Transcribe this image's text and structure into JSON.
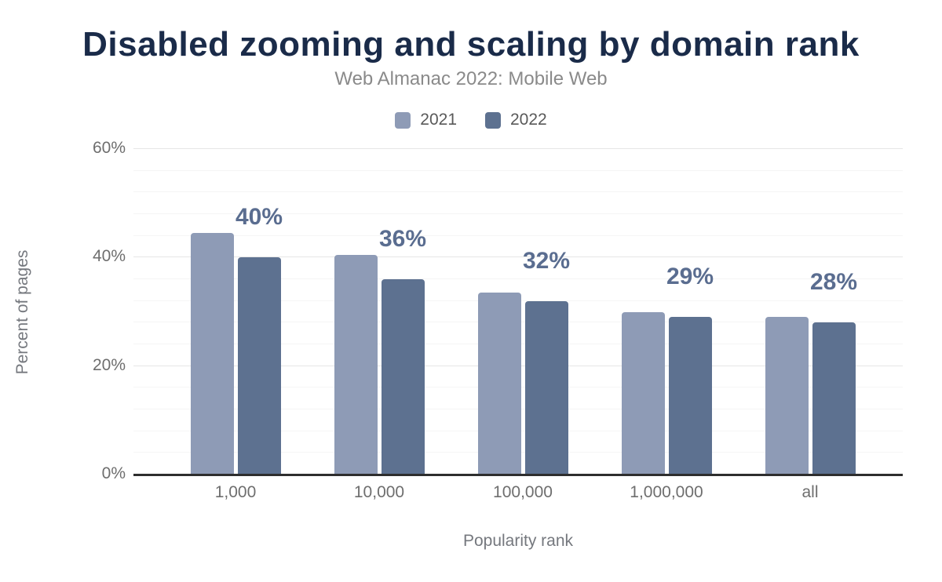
{
  "chart_data": {
    "type": "bar",
    "title": "Disabled zooming and scaling by domain rank",
    "subtitle": "Web Almanac 2022: Mobile Web",
    "xlabel": "Popularity rank",
    "ylabel": "Percent of pages",
    "categories": [
      "1,000",
      "10,000",
      "100,000",
      "1,000,000",
      "all"
    ],
    "series": [
      {
        "name": "2021",
        "color": "#8e9bb6",
        "values": [
          44.5,
          40.5,
          33.5,
          30,
          29
        ]
      },
      {
        "name": "2022",
        "color": "#5d7190",
        "values": [
          40,
          36,
          32,
          29,
          28
        ]
      }
    ],
    "data_labels": [
      "40%",
      "36%",
      "32%",
      "29%",
      "28%"
    ],
    "ylim": [
      0,
      60
    ],
    "yticks": [
      {
        "value": 0,
        "label": "0%"
      },
      {
        "value": 20,
        "label": "20%"
      },
      {
        "value": 40,
        "label": "40%"
      },
      {
        "value": 60,
        "label": "60%"
      }
    ],
    "minor_grid_step_percent": 4,
    "major_grid_step_percent": 20,
    "grid": true,
    "legend_position": "top"
  },
  "colors": {
    "title_text": "#1a2b49",
    "subtitle_text": "#8a8a8a",
    "axis_tick_text": "#6e6e6e",
    "axis_title_text": "#75787e",
    "legend_text": "#595959",
    "data_label_text": "#5a6d90",
    "major_gridline": "#e6e6e6",
    "minor_gridline": "#f5f5f5",
    "axis_line": "#2e2e2e",
    "background": "#ffffff"
  }
}
